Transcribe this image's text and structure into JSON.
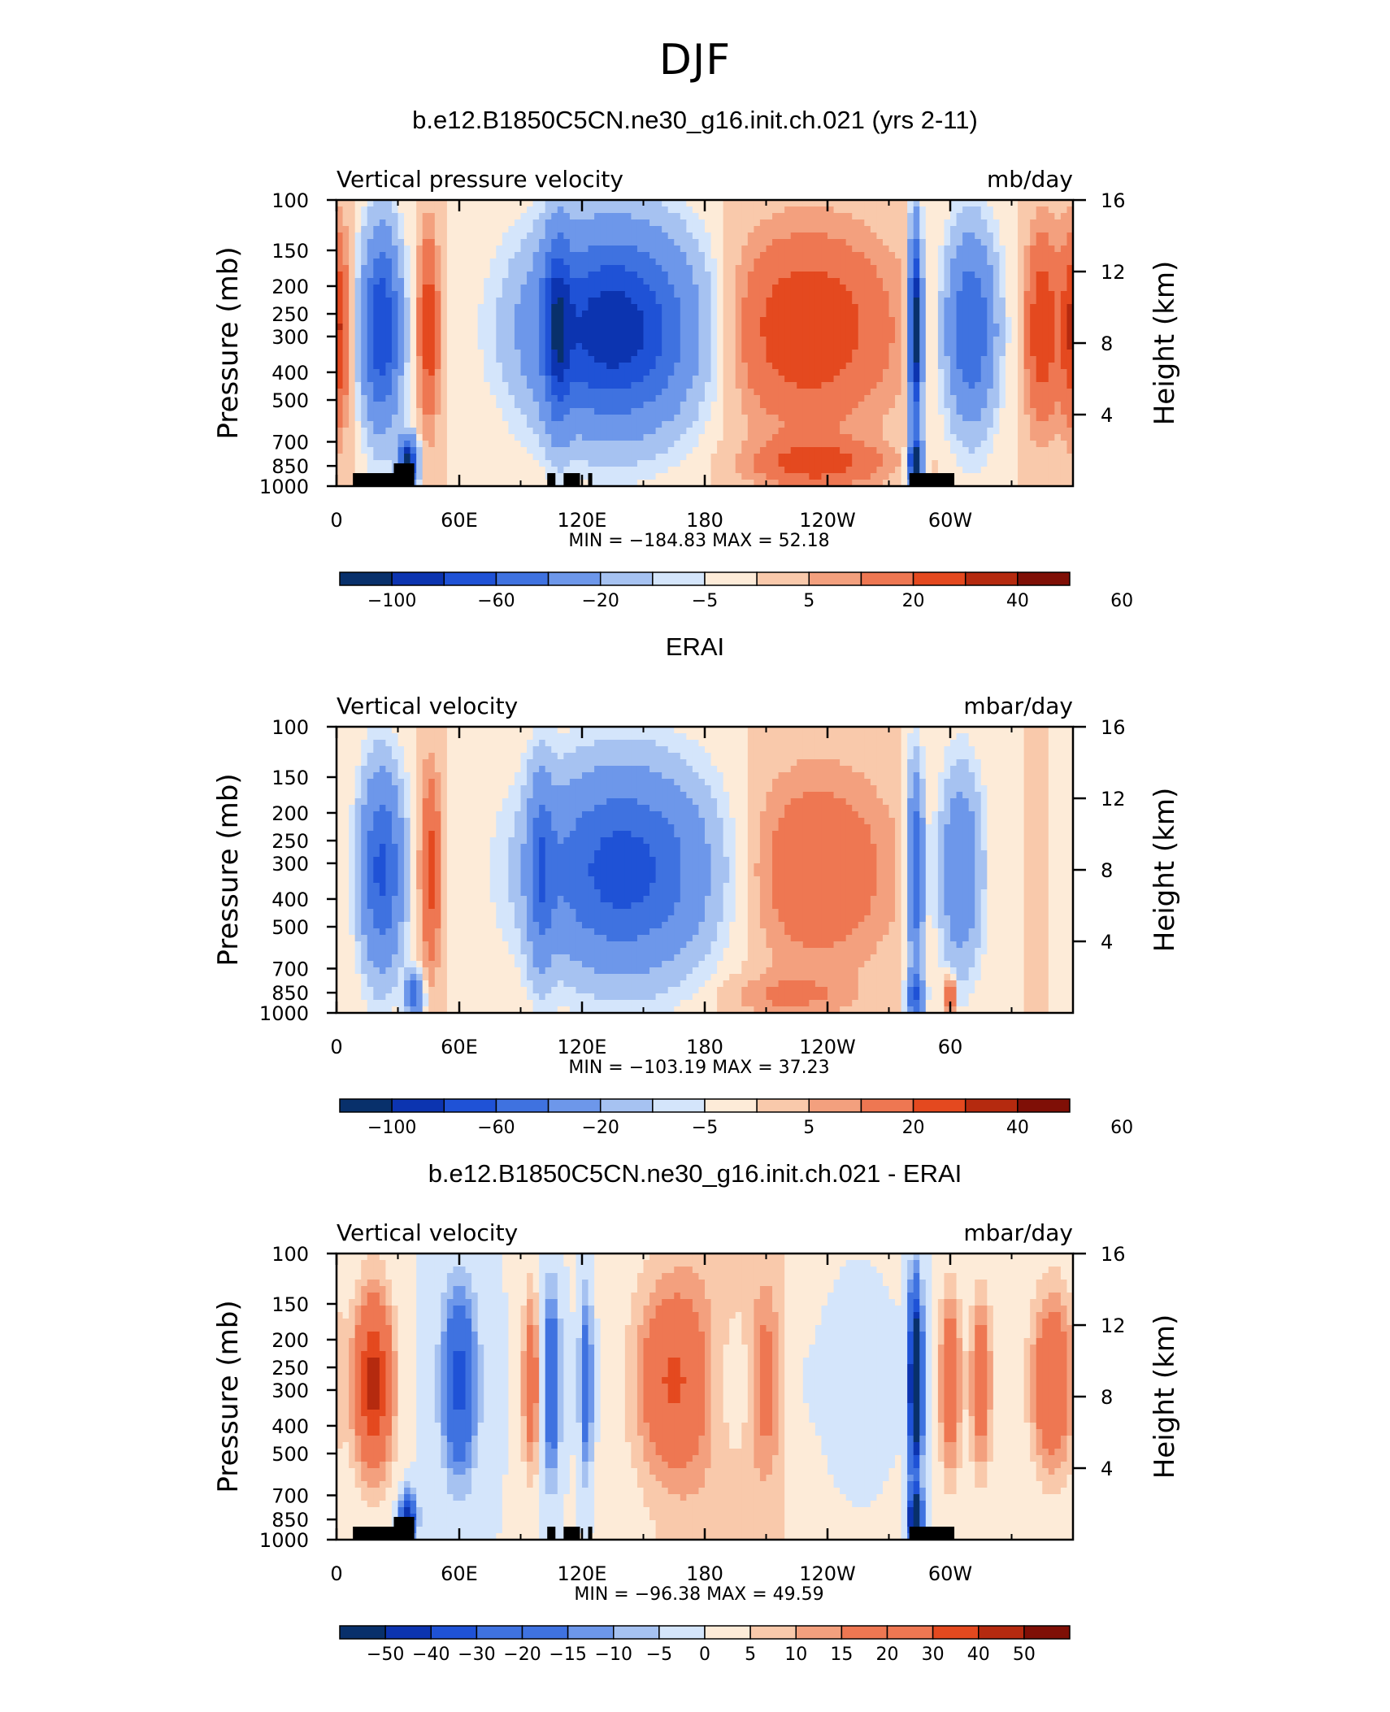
{
  "figure": {
    "title": "DJF"
  },
  "colors": {
    "palette": [
      "#08306b",
      "#0c34b0",
      "#1f52d6",
      "#3f72e0",
      "#6d97ea",
      "#a6c2f1",
      "#d4e5fb",
      "#fdebd8",
      "#f9c9ab",
      "#f3a07e",
      "#ee7752",
      "#e4491f",
      "#b52a0f",
      "#7f0f06"
    ]
  },
  "chart_data": [
    {
      "type": "heatmap",
      "title": "b.e12.B1850C5CN.ne30_g16.init.ch.021 (yrs 2-11)",
      "variable_label": "Vertical pressure velocity",
      "units": "mb/day",
      "ylabel": "Pressure (mb)",
      "y2label": "Height (km)",
      "x_ticks": [
        "0",
        "60E",
        "120E",
        "180",
        "120W",
        "60W"
      ],
      "y_ticks": [
        "100",
        "150",
        "200",
        "250",
        "300",
        "400",
        "500",
        "700",
        "850",
        "1000"
      ],
      "y2_ticks": [
        "16",
        "12",
        "8",
        "4"
      ],
      "min_text": "MIN = −184.83",
      "max_text": "MAX =   52.18",
      "colorbar_labels": [
        "−100",
        "−60",
        "−20",
        "−5",
        "5",
        "20",
        "40",
        "60"
      ],
      "colorbar_levels": [
        -120,
        -100,
        -80,
        -60,
        -40,
        -20,
        -10,
        -5,
        0,
        5,
        10,
        20,
        30,
        40,
        60
      ],
      "min": -184.83,
      "max": 52.18
    },
    {
      "type": "heatmap",
      "title": "ERAI",
      "variable_label": "Vertical velocity",
      "units": "mbar/day",
      "ylabel": "Pressure (mb)",
      "y2label": "Height (km)",
      "x_ticks": [
        "0",
        "60E",
        "120E",
        "180",
        "120W",
        "60"
      ],
      "y_ticks": [
        "100",
        "150",
        "200",
        "250",
        "300",
        "400",
        "500",
        "700",
        "850",
        "1000"
      ],
      "y2_ticks": [
        "16",
        "12",
        "8",
        "4"
      ],
      "min_text": "MIN = −103.19",
      "max_text": "MAX =   37.23",
      "colorbar_labels": [
        "−100",
        "−60",
        "−20",
        "−5",
        "5",
        "20",
        "40",
        "60"
      ],
      "colorbar_levels": [
        -120,
        -100,
        -80,
        -60,
        -40,
        -20,
        -10,
        -5,
        0,
        5,
        10,
        20,
        30,
        40,
        60
      ],
      "min": -103.19,
      "max": 37.23
    },
    {
      "type": "heatmap",
      "title": "b.e12.B1850C5CN.ne30_g16.init.ch.021 - ERAI",
      "variable_label": "Vertical velocity",
      "units": "mbar/day",
      "ylabel": "Pressure (mb)",
      "y2label": "Height (km)",
      "x_ticks": [
        "0",
        "60E",
        "120E",
        "180",
        "120W",
        "60W"
      ],
      "y_ticks": [
        "100",
        "150",
        "200",
        "250",
        "300",
        "400",
        "500",
        "700",
        "850",
        "1000"
      ],
      "y2_ticks": [
        "16",
        "12",
        "8",
        "4"
      ],
      "min_text": "MIN = −96.38",
      "max_text": "MAX =   49.59",
      "colorbar_labels": [
        "−50",
        "−40",
        "−30",
        "−20",
        "−15",
        "−10",
        "−5",
        "0",
        "5",
        "10",
        "15",
        "20",
        "30",
        "40",
        "50"
      ],
      "colorbar_levels": [
        -60,
        -50,
        -40,
        -30,
        -20,
        -15,
        -10,
        -5,
        0,
        5,
        10,
        15,
        20,
        30,
        40,
        50,
        60
      ],
      "min": -96.38,
      "max": 49.59
    }
  ]
}
